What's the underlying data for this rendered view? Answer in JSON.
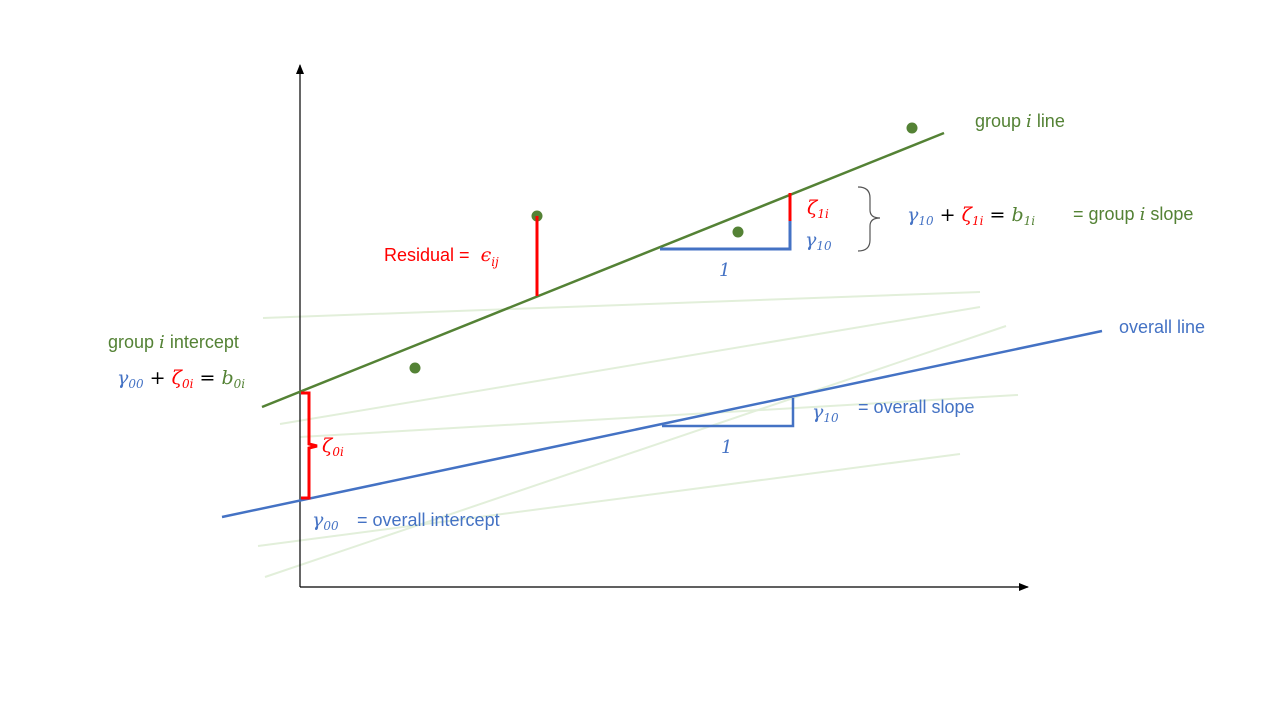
{
  "colors": {
    "blue": "#4472C4",
    "green": "#548235",
    "red": "#FF0000",
    "faint_green": "#E2EFDA",
    "axis": "#000000",
    "text": "#333333"
  },
  "labels": {
    "group_line": {
      "pre": "group ",
      "var": "i",
      "post": " line"
    },
    "overall_line": "overall line",
    "group_intercept": {
      "pre": "group ",
      "var": "i",
      "post": " intercept"
    },
    "group_intercept_eq": {
      "g": "γ",
      "g_sub": "00",
      "plus": " + ",
      "z": "ζ",
      "z_sub": "0i",
      "eq": " = ",
      "b": "b",
      "b_sub": "0i"
    },
    "residual": {
      "text": "Residual = ",
      "sym": "ϵ",
      "sub": "ij"
    },
    "zeta_0i": {
      "sym": "ζ",
      "sub": "0i"
    },
    "zeta_1i": {
      "sym": "ζ",
      "sub": "1i"
    },
    "gamma_10": {
      "sym": "γ",
      "sub": "10"
    },
    "gamma_00": {
      "sym": "γ",
      "sub": "00"
    },
    "unit_run": "1",
    "group_slope_eq": {
      "g": "γ",
      "g_sub": "10",
      "plus": " + ",
      "z": "ζ",
      "z_sub": "1i",
      "eq": " = ",
      "b": "b",
      "b_sub": "1i",
      "tail_pre": "= group ",
      "tail_var": "i",
      "tail_post": " slope"
    },
    "overall_slope": "= overall slope",
    "overall_intercept": "= overall intercept"
  }
}
